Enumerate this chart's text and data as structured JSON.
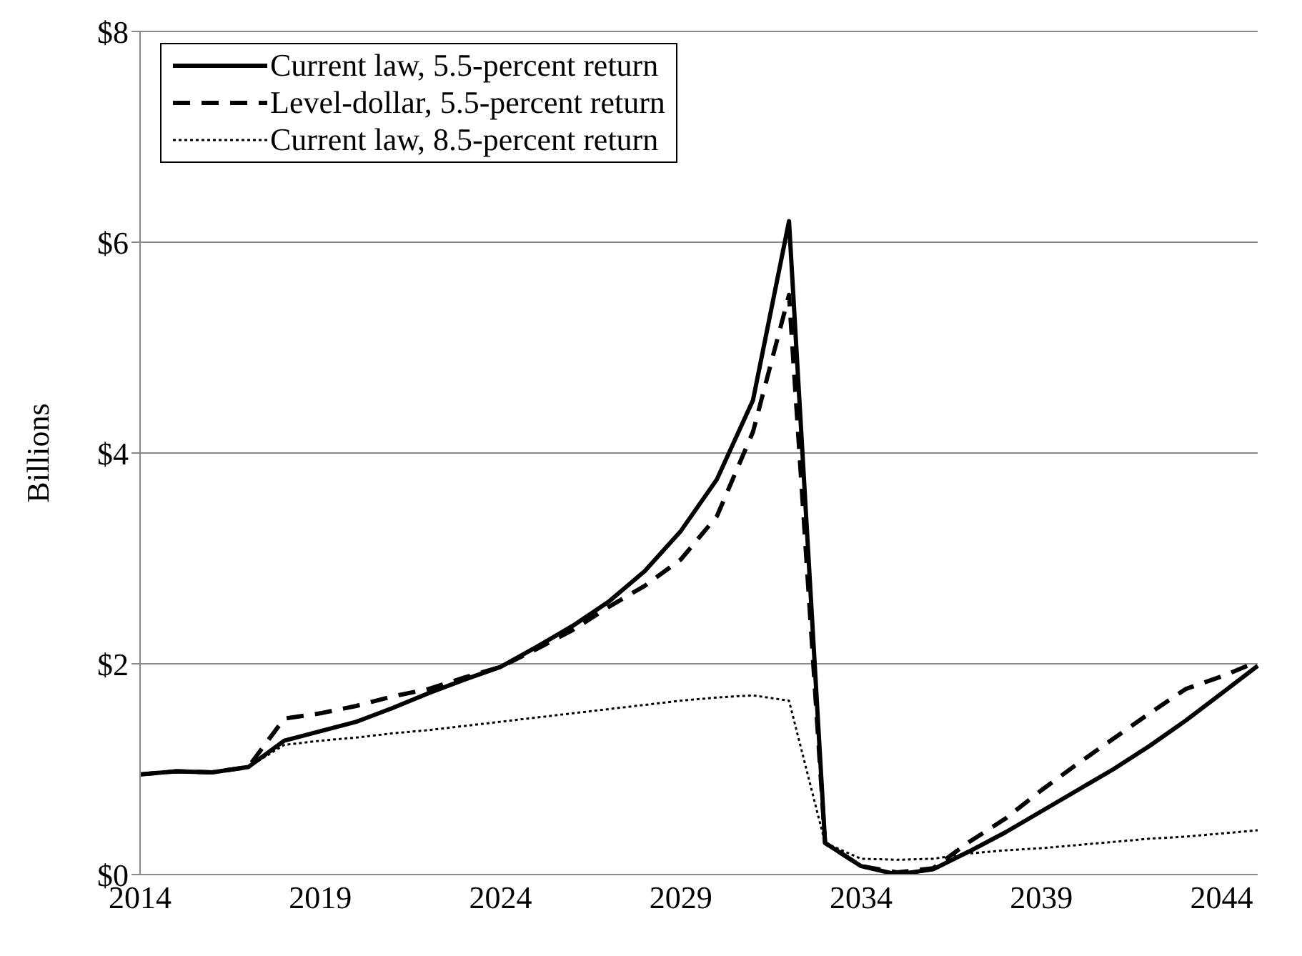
{
  "chart_data": {
    "type": "line",
    "ylabel": "Billions",
    "categories": [
      "2014",
      null,
      null,
      null,
      null,
      "2019",
      null,
      null,
      null,
      null,
      "2024",
      null,
      null,
      null,
      null,
      "2029",
      null,
      null,
      null,
      null,
      "2034",
      null,
      null,
      null,
      null,
      "2039",
      null,
      null,
      null,
      null,
      "2044",
      null
    ],
    "series": [
      {
        "name": "Current law, 5.5-percent return",
        "color": "#000000",
        "line_style": "solid",
        "values": [
          0.95,
          0.98,
          0.97,
          1.02,
          1.27,
          1.36,
          1.45,
          1.58,
          1.72,
          1.85,
          1.97,
          2.16,
          2.36,
          2.59,
          2.88,
          3.26,
          3.75,
          4.5,
          6.2,
          0.3,
          0.08,
          0.0,
          0.05,
          0.22,
          0.4,
          0.6,
          0.8,
          1.0,
          1.22,
          1.46,
          1.72,
          1.98
        ]
      },
      {
        "name": "Level-dollar, 5.5-percent return",
        "color": "#000000",
        "line_style": "dashed",
        "values": [
          0.95,
          0.98,
          0.97,
          1.02,
          1.48,
          1.53,
          1.6,
          1.69,
          1.76,
          1.87,
          1.97,
          2.14,
          2.32,
          2.54,
          2.74,
          2.99,
          3.4,
          4.2,
          5.5,
          0.3,
          0.08,
          0.02,
          0.06,
          0.31,
          0.53,
          0.8,
          1.05,
          1.29,
          1.53,
          1.76,
          1.88,
          2.02
        ]
      },
      {
        "name": "Current law, 8.5-percent return",
        "color": "#000000",
        "line_style": "dotted",
        "values": [
          0.95,
          0.98,
          0.97,
          1.02,
          1.23,
          1.27,
          1.3,
          1.34,
          1.37,
          1.41,
          1.45,
          1.49,
          1.53,
          1.57,
          1.61,
          1.65,
          1.68,
          1.7,
          1.65,
          0.3,
          0.15,
          0.14,
          0.15,
          0.2,
          0.23,
          0.25,
          0.28,
          0.31,
          0.34,
          0.36,
          0.39,
          0.42
        ]
      }
    ],
    "ylim": [
      0,
      8
    ],
    "yticks": [
      {
        "value": 0,
        "label": "$0"
      },
      {
        "value": 2,
        "label": "$2"
      },
      {
        "value": 4,
        "label": "$4"
      },
      {
        "value": 6,
        "label": "$6"
      },
      {
        "value": 8,
        "label": "$8"
      }
    ],
    "grid": "y",
    "legend": "top left"
  }
}
